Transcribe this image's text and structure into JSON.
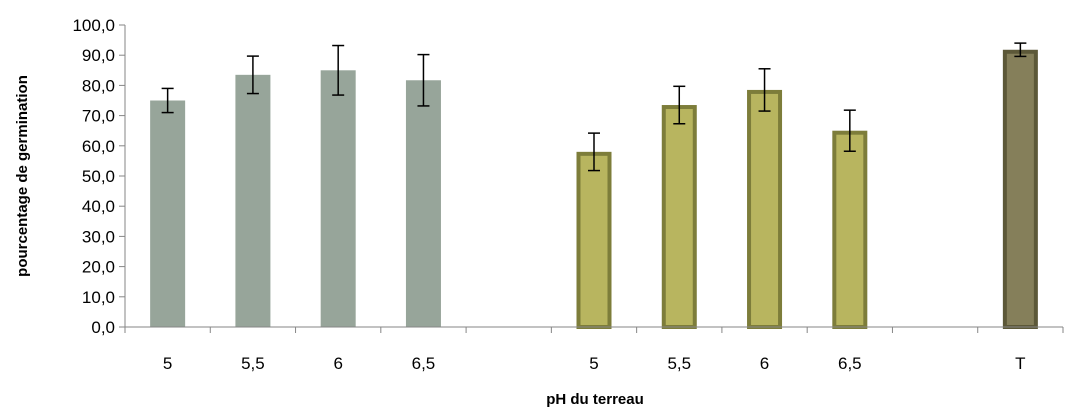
{
  "chart_data": {
    "type": "bar",
    "xlabel": "pH du terreau",
    "ylabel": "pourcentage de germination",
    "ylim": [
      0,
      100
    ],
    "yticks": [
      "0,0",
      "10,0",
      "20,0",
      "30,0",
      "40,0",
      "50,0",
      "60,0",
      "70,0",
      "80,0",
      "90,0",
      "100,0"
    ],
    "categories": [
      "5",
      "5,5",
      "6",
      "6,5",
      "",
      "5",
      "5,5",
      "6",
      "6,5",
      "",
      "T"
    ],
    "values": [
      75.0,
      83.5,
      85.0,
      81.7,
      0,
      58.0,
      73.5,
      78.5,
      65.0,
      0,
      91.8
    ],
    "errors": [
      4.0,
      6.2,
      8.2,
      8.5,
      0,
      6.2,
      6.2,
      7.0,
      6.8,
      0,
      2.2
    ],
    "grid": false,
    "legend": "none",
    "colors": {
      "group1_fill": "#97a59a",
      "group2_fill": "#b8b55f",
      "group2_stroke": "#7d7d3a",
      "control_fill": "#857f5a",
      "control_stroke": "#5c5838",
      "axis": "#868686",
      "error": "#000000"
    },
    "bar_styles": [
      "g1",
      "g1",
      "g1",
      "g1",
      "none",
      "g2",
      "g2",
      "g2",
      "g2",
      "none",
      "ctrl"
    ]
  }
}
